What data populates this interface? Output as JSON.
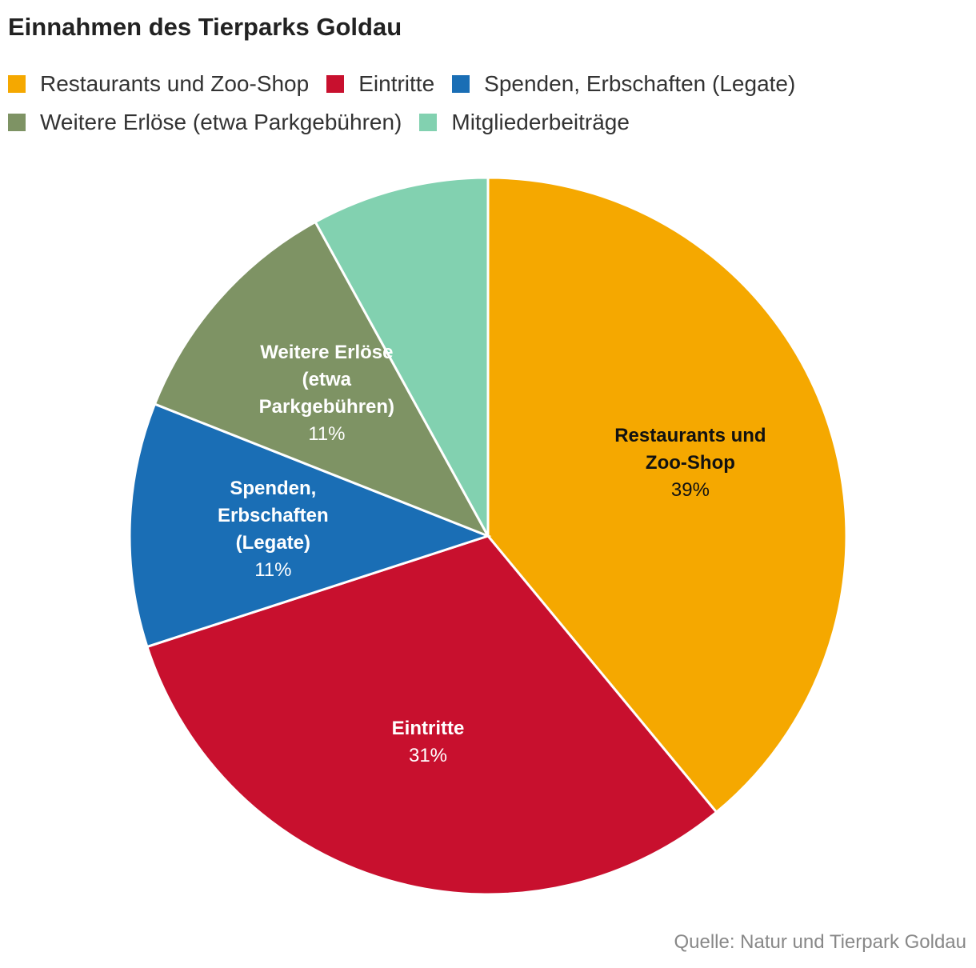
{
  "chart_data": {
    "type": "pie",
    "title": "Einnahmen des Tierparks Goldau",
    "categories": [
      "Restaurants und Zoo-Shop",
      "Eintritte",
      "Spenden, Erbschaften (Legate)",
      "Weitere Erlöse (etwa Parkgebühren)",
      "Mitgliederbeiträge"
    ],
    "values": [
      39,
      31,
      11,
      11,
      8
    ],
    "value_labels": [
      "39%",
      "31%",
      "11%",
      "11%",
      null
    ],
    "colors": [
      "#f5a800",
      "#c8102e",
      "#1a6eb5",
      "#7e9364",
      "#82d1b0"
    ],
    "source": "Quelle: Natur und Tierpark Goldau"
  }
}
